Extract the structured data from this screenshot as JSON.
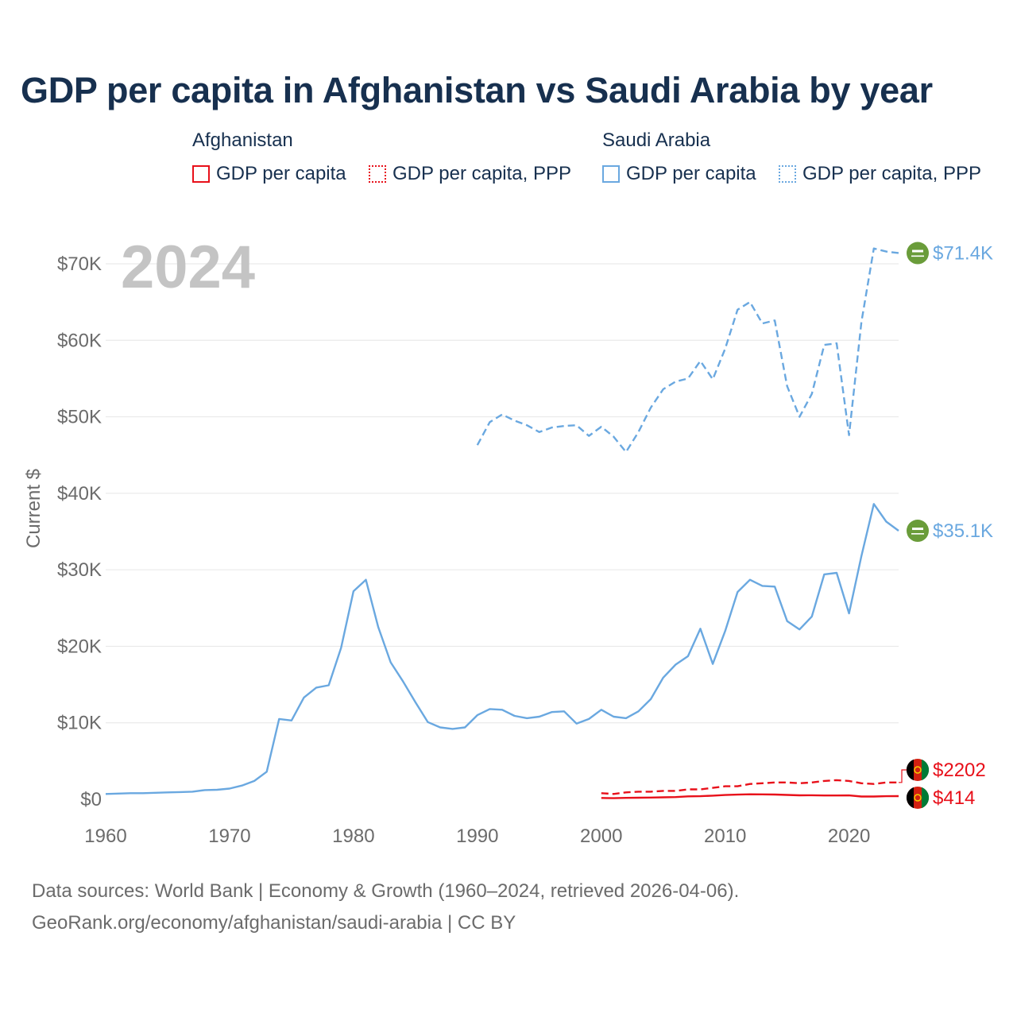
{
  "title": "GDP per capita in Afghanistan vs Saudi Arabia by year",
  "legend": {
    "afghanistan": {
      "label": "Afghanistan",
      "solid": "GDP per capita",
      "dotted": "GDP per capita, PPP"
    },
    "saudi": {
      "label": "Saudi Arabia",
      "solid": "GDP per capita",
      "dotted": "GDP per capita, PPP"
    }
  },
  "source": {
    "line1": "Data sources: World Bank | Economy & Growth (1960–2024, retrieved 2026-04-06).",
    "line2": "GeoRank.org/economy/afghanistan/saudi-arabia | CC BY"
  },
  "colors": {
    "afghanistan": "#e8101a",
    "saudi": "#6aa8e0",
    "grid": "#e6e6e6",
    "axis_text": "#6b6b6b",
    "year_watermark": "#c4c4c4"
  },
  "chart_data": {
    "type": "line",
    "ylabel": "Current $",
    "xlim": [
      1960,
      2024
    ],
    "ylim": [
      0,
      70000
    ],
    "x_ticks": [
      1960,
      1970,
      1980,
      1990,
      2000,
      2010,
      2020
    ],
    "x_tick_labels": [
      "1960",
      "1970",
      "1980",
      "1990",
      "2000",
      "2010",
      "2020"
    ],
    "y_ticks": [
      0,
      10000,
      20000,
      30000,
      40000,
      50000,
      60000,
      70000
    ],
    "y_tick_labels": [
      "$0",
      "$10K",
      "$20K",
      "$30K",
      "$40K",
      "$50K",
      "$60K",
      "$70K"
    ],
    "year_label": "2024",
    "series": [
      {
        "name": "Saudi Arabia GDP per capita",
        "country": "saudi",
        "style": "solid",
        "end_label": "$35.1K",
        "x": [
          1960,
          1961,
          1962,
          1963,
          1964,
          1965,
          1966,
          1967,
          1968,
          1969,
          1970,
          1971,
          1972,
          1973,
          1974,
          1975,
          1976,
          1977,
          1978,
          1979,
          1980,
          1981,
          1982,
          1983,
          1984,
          1985,
          1986,
          1987,
          1988,
          1989,
          1990,
          1991,
          1992,
          1993,
          1994,
          1995,
          1996,
          1997,
          1998,
          1999,
          2000,
          2001,
          2002,
          2003,
          2004,
          2005,
          2006,
          2007,
          2008,
          2009,
          2010,
          2011,
          2012,
          2013,
          2014,
          2015,
          2016,
          2017,
          2018,
          2019,
          2020,
          2021,
          2022,
          2023,
          2024
        ],
        "values": [
          700,
          750,
          800,
          800,
          850,
          900,
          950,
          1000,
          1200,
          1250,
          1400,
          1800,
          2400,
          3600,
          10500,
          10300,
          13300,
          14600,
          14900,
          19800,
          27200,
          28700,
          22500,
          17900,
          15400,
          12700,
          10100,
          9400,
          9200,
          9400,
          11000,
          11800,
          11700,
          10900,
          10600,
          10800,
          11400,
          11500,
          9900,
          10500,
          11700,
          10800,
          10600,
          11500,
          13100,
          15900,
          17600,
          18700,
          22300,
          17700,
          22000,
          27100,
          28700,
          27900,
          27800,
          23300,
          22200,
          23900,
          29400,
          29600,
          24300,
          31800,
          38600,
          36300,
          35100
        ]
      },
      {
        "name": "Saudi Arabia GDP per capita, PPP",
        "country": "saudi",
        "style": "dashed",
        "end_label": "$71.4K",
        "x": [
          1990,
          1991,
          1992,
          1993,
          1994,
          1995,
          1996,
          1997,
          1998,
          1999,
          2000,
          2001,
          2002,
          2003,
          2004,
          2005,
          2006,
          2007,
          2008,
          2009,
          2010,
          2011,
          2012,
          2013,
          2014,
          2015,
          2016,
          2017,
          2018,
          2019,
          2020,
          2021,
          2022,
          2023,
          2024
        ],
        "values": [
          46300,
          49300,
          50300,
          49500,
          48900,
          48000,
          48600,
          48800,
          48900,
          47500,
          48700,
          47400,
          45400,
          48000,
          51200,
          53600,
          54600,
          55000,
          57300,
          54900,
          58900,
          64000,
          65000,
          62200,
          62600,
          54000,
          50000,
          53000,
          59400,
          59600,
          47600,
          62400,
          72000,
          71600,
          71400
        ]
      },
      {
        "name": "Afghanistan GDP per capita",
        "country": "afghanistan",
        "style": "solid",
        "end_label": "$414",
        "x": [
          2000,
          2001,
          2002,
          2003,
          2004,
          2005,
          2006,
          2007,
          2008,
          2009,
          2010,
          2011,
          2012,
          2013,
          2014,
          2015,
          2016,
          2017,
          2018,
          2019,
          2020,
          2021,
          2022,
          2023,
          2024
        ],
        "values": [
          180,
          150,
          190,
          210,
          230,
          260,
          290,
          380,
          400,
          480,
          560,
          610,
          650,
          640,
          620,
          570,
          520,
          530,
          500,
          500,
          510,
          360,
          360,
          410,
          414
        ]
      },
      {
        "name": "Afghanistan GDP per capita, PPP",
        "country": "afghanistan",
        "style": "dashed",
        "end_label": "$2202",
        "x": [
          2000,
          2001,
          2002,
          2003,
          2004,
          2005,
          2006,
          2007,
          2008,
          2009,
          2010,
          2011,
          2012,
          2013,
          2014,
          2015,
          2016,
          2017,
          2018,
          2019,
          2020,
          2021,
          2022,
          2023,
          2024
        ],
        "values": [
          800,
          700,
          900,
          1000,
          1000,
          1100,
          1100,
          1300,
          1300,
          1500,
          1700,
          1700,
          2000,
          2100,
          2200,
          2200,
          2100,
          2200,
          2400,
          2500,
          2400,
          2100,
          2000,
          2200,
          2202
        ]
      }
    ]
  }
}
